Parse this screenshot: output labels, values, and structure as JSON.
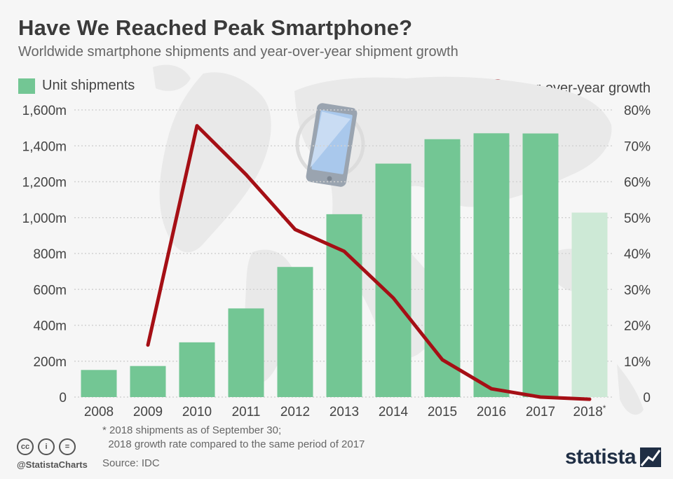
{
  "header": {
    "title": "Have We Reached Peak Smartphone?",
    "subtitle": "Worldwide smartphone shipments and year-over-year shipment growth"
  },
  "legend": {
    "bars": "Unit shipments",
    "line": "Year-over-year growth"
  },
  "footer": {
    "footnote": "* 2018 shipments as of September 30;\n  2018 growth rate compared to the same period of 2017",
    "handle": "@StatistaCharts",
    "source": "Source: IDC",
    "logo": "statista",
    "license_icons": [
      "cc-icon",
      "person-icon",
      "equals-icon"
    ]
  },
  "icons": [
    "smartphone-icon",
    "world-map"
  ],
  "colors": {
    "bar": "#73c694",
    "bar_partial": "#cde9d6",
    "line": "#a50f15",
    "text": "#333333",
    "background": "#f6f6f6"
  },
  "chart_data": {
    "type": "bar",
    "categories": [
      "2008",
      "2009",
      "2010",
      "2011",
      "2012",
      "2013",
      "2014",
      "2015",
      "2016",
      "2017",
      "2018*"
    ],
    "series": [
      {
        "name": "Unit shipments",
        "type": "bar",
        "axis": "left",
        "values": [
          151,
          173,
          305,
          494,
          725,
          1019,
          1301,
          1437,
          1470,
          1469,
          1028
        ]
      },
      {
        "name": "Year-over-year growth",
        "type": "line",
        "axis": "right",
        "values": [
          null,
          14.5,
          75.6,
          62.0,
          46.7,
          40.6,
          27.6,
          10.4,
          2.3,
          0.0,
          -0.6
        ]
      }
    ],
    "left_axis": {
      "ylim": [
        0,
        1600
      ],
      "ticks": [
        "0",
        "200m",
        "400m",
        "600m",
        "800m",
        "1,000m",
        "1,200m",
        "1,400m",
        "1,600m"
      ]
    },
    "right_axis": {
      "ylim": [
        0,
        80
      ],
      "ticks": [
        "0",
        "10%",
        "20%",
        "30%",
        "40%",
        "50%",
        "60%",
        "70%",
        "80%"
      ]
    },
    "grid": true,
    "legend_placement": "top"
  }
}
